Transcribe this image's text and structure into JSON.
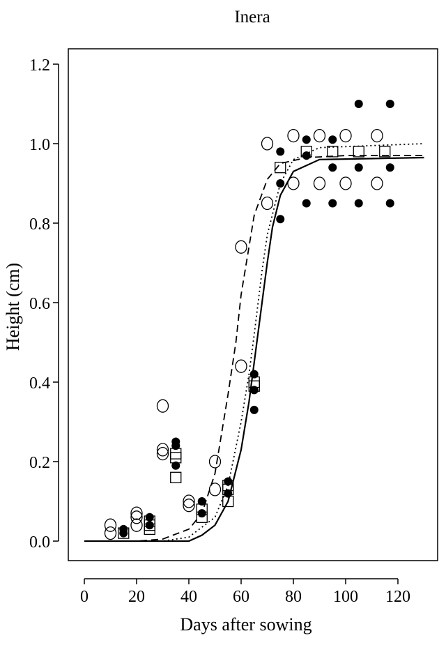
{
  "chart_data": {
    "type": "scatter",
    "title": "Inera",
    "xlabel": "Days after sowing",
    "ylabel": "Height (cm)",
    "xlim": [
      0,
      130
    ],
    "ylim": [
      0,
      1.2
    ],
    "xticks": [
      0,
      20,
      40,
      60,
      80,
      100,
      120
    ],
    "yticks": [
      0.0,
      0.2,
      0.4,
      0.6,
      0.8,
      1.0,
      1.2
    ],
    "xtick_labels": [
      "0",
      "20",
      "40",
      "60",
      "80",
      "100",
      "120"
    ],
    "ytick_labels": [
      "0.0",
      "0.2",
      "0.4",
      "0.6",
      "0.8",
      "1.0",
      "1.2"
    ],
    "grid": false,
    "legend": "none",
    "series": [
      {
        "marker": "open-circle",
        "line": "dashed",
        "points": [
          [
            10,
            0.02
          ],
          [
            10,
            0.04
          ],
          [
            20,
            0.04
          ],
          [
            20,
            0.06
          ],
          [
            20,
            0.07
          ],
          [
            30,
            0.22
          ],
          [
            30,
            0.23
          ],
          [
            30,
            0.34
          ],
          [
            40,
            0.09
          ],
          [
            40,
            0.1
          ],
          [
            50,
            0.2
          ],
          [
            50,
            0.13
          ],
          [
            60,
            0.44
          ],
          [
            60,
            0.74
          ],
          [
            70,
            0.85
          ],
          [
            70,
            1.0
          ],
          [
            80,
            0.9
          ],
          [
            80,
            1.02
          ],
          [
            90,
            0.9
          ],
          [
            90,
            1.02
          ],
          [
            100,
            0.9
          ],
          [
            100,
            1.02
          ],
          [
            112,
            0.9
          ],
          [
            112,
            1.02
          ]
        ],
        "curve": [
          [
            0,
            0.0
          ],
          [
            20,
            0.0
          ],
          [
            30,
            0.005
          ],
          [
            40,
            0.03
          ],
          [
            45,
            0.07
          ],
          [
            50,
            0.17
          ],
          [
            55,
            0.37
          ],
          [
            58,
            0.5
          ],
          [
            60,
            0.62
          ],
          [
            65,
            0.82
          ],
          [
            70,
            0.91
          ],
          [
            75,
            0.95
          ],
          [
            85,
            0.965
          ],
          [
            100,
            0.97
          ],
          [
            130,
            0.97
          ]
        ]
      },
      {
        "marker": "filled-circle",
        "line": "dotted",
        "points": [
          [
            15,
            0.02
          ],
          [
            15,
            0.03
          ],
          [
            25,
            0.04
          ],
          [
            25,
            0.06
          ],
          [
            35,
            0.19
          ],
          [
            35,
            0.24
          ],
          [
            35,
            0.25
          ],
          [
            45,
            0.07
          ],
          [
            45,
            0.1
          ],
          [
            55,
            0.12
          ],
          [
            55,
            0.15
          ],
          [
            65,
            0.33
          ],
          [
            65,
            0.38
          ],
          [
            65,
            0.42
          ],
          [
            75,
            0.81
          ],
          [
            75,
            0.9
          ],
          [
            75,
            0.98
          ],
          [
            85,
            0.85
          ],
          [
            85,
            0.97
          ],
          [
            85,
            1.01
          ],
          [
            95,
            0.85
          ],
          [
            95,
            0.94
          ],
          [
            95,
            1.01
          ],
          [
            105,
            0.85
          ],
          [
            105,
            0.94
          ],
          [
            105,
            1.1
          ],
          [
            117,
            0.85
          ],
          [
            117,
            0.94
          ],
          [
            117,
            1.1
          ]
        ],
        "curve": [
          [
            0,
            0.0
          ],
          [
            30,
            0.0
          ],
          [
            40,
            0.01
          ],
          [
            50,
            0.06
          ],
          [
            55,
            0.14
          ],
          [
            60,
            0.3
          ],
          [
            63,
            0.42
          ],
          [
            65,
            0.52
          ],
          [
            68,
            0.68
          ],
          [
            70,
            0.77
          ],
          [
            75,
            0.9
          ],
          [
            80,
            0.96
          ],
          [
            90,
            0.99
          ],
          [
            130,
            1.0
          ]
        ]
      },
      {
        "marker": "open-square",
        "line": "solid",
        "points": [
          [
            15,
            0.02
          ],
          [
            25,
            0.03
          ],
          [
            25,
            0.04
          ],
          [
            25,
            0.05
          ],
          [
            35,
            0.16
          ],
          [
            35,
            0.21
          ],
          [
            35,
            0.22
          ],
          [
            45,
            0.06
          ],
          [
            45,
            0.08
          ],
          [
            55,
            0.1
          ],
          [
            55,
            0.13
          ],
          [
            55,
            0.14
          ],
          [
            65,
            0.39
          ],
          [
            65,
            0.4
          ],
          [
            75,
            0.94
          ],
          [
            85,
            0.98
          ],
          [
            95,
            0.98
          ],
          [
            105,
            0.98
          ],
          [
            115,
            0.98
          ]
        ],
        "curve": [
          [
            0,
            0.0
          ],
          [
            40,
            0.0
          ],
          [
            45,
            0.015
          ],
          [
            50,
            0.04
          ],
          [
            55,
            0.1
          ],
          [
            60,
            0.23
          ],
          [
            63,
            0.35
          ],
          [
            65,
            0.45
          ],
          [
            68,
            0.6
          ],
          [
            70,
            0.7
          ],
          [
            72,
            0.79
          ],
          [
            75,
            0.87
          ],
          [
            80,
            0.93
          ],
          [
            90,
            0.96
          ],
          [
            130,
            0.965
          ]
        ]
      }
    ]
  }
}
